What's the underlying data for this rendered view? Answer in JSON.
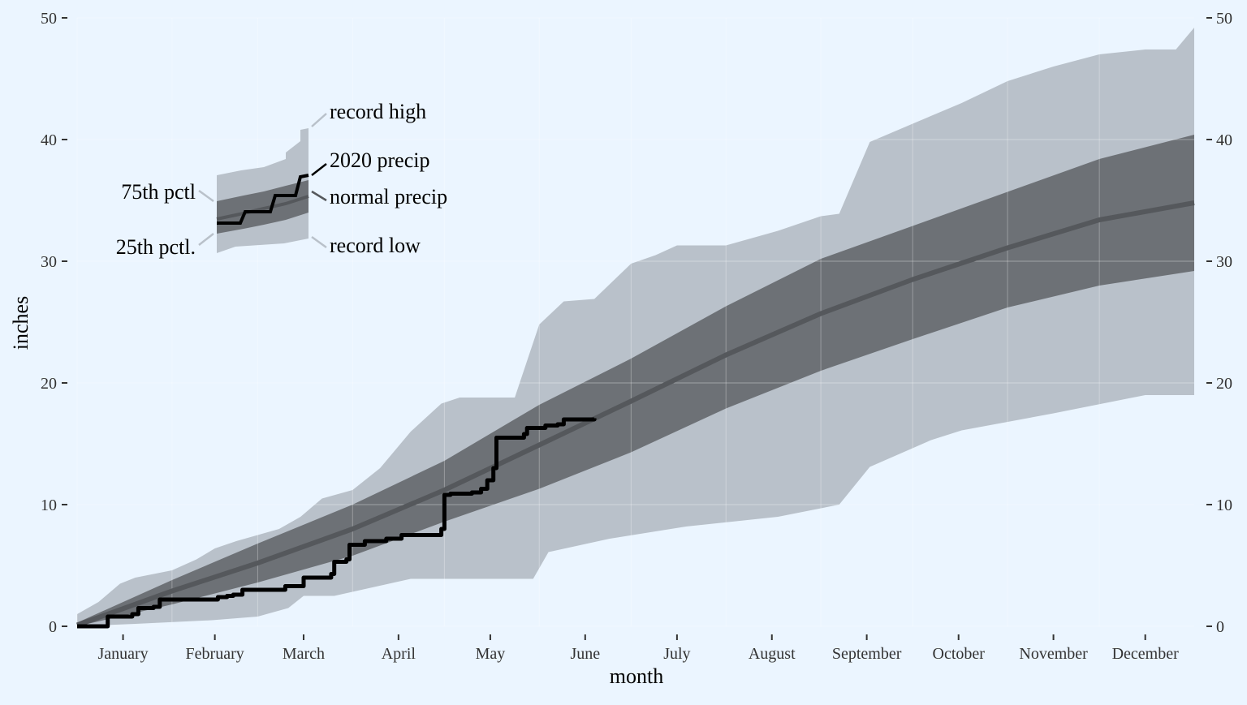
{
  "chart_data": {
    "type": "area",
    "xlabel": "month",
    "ylabel": "inches",
    "ylim": [
      0,
      50
    ],
    "y_ticks": [
      0,
      10,
      20,
      30,
      40,
      50
    ],
    "x_tick_labels": [
      "January",
      "February",
      "March",
      "April",
      "May",
      "June",
      "July",
      "August",
      "September",
      "October",
      "November",
      "December"
    ],
    "x_unit": "day of year",
    "xlim": [
      1,
      366
    ],
    "grid": true,
    "legend_placement": "top-left inset",
    "colors": {
      "record_band": "#b9c1ca",
      "pctl_band": "#6d7176",
      "normal_line": "#55585c",
      "precip_line": "#000000",
      "background": "#ebf5ff"
    },
    "series": [
      {
        "name": "record high",
        "x": [
          1,
          8,
          15,
          20,
          32,
          40,
          46,
          53,
          60,
          67,
          74,
          81,
          91,
          100,
          110,
          120,
          126,
          135,
          144,
          152,
          160,
          170,
          182,
          190,
          197,
          213,
          230,
          244,
          250,
          260,
          274,
          290,
          305,
          320,
          335,
          350,
          360,
          366
        ],
        "y": [
          1.0,
          2.0,
          3.5,
          4.0,
          4.6,
          5.5,
          6.4,
          7.0,
          7.5,
          8.0,
          9.0,
          10.5,
          11.2,
          13.0,
          16.0,
          18.3,
          18.8,
          18.8,
          18.8,
          24.8,
          26.7,
          26.9,
          29.8,
          30.5,
          31.3,
          31.3,
          32.5,
          33.7,
          33.9,
          39.8,
          41.3,
          43.0,
          44.8,
          46.0,
          47.0,
          47.4,
          47.4,
          49.2
        ]
      },
      {
        "name": "75th pctl",
        "x": [
          1,
          32,
          60,
          91,
          121,
          152,
          182,
          213,
          244,
          274,
          305,
          335,
          366
        ],
        "y": [
          0.3,
          3.8,
          6.8,
          10.0,
          13.6,
          18.2,
          22.0,
          26.3,
          30.2,
          32.9,
          35.7,
          38.4,
          40.4
        ]
      },
      {
        "name": "normal precip",
        "x": [
          1,
          32,
          60,
          91,
          121,
          152,
          182,
          213,
          244,
          274,
          305,
          335,
          366
        ],
        "y": [
          0.1,
          2.9,
          5.2,
          8.0,
          11.2,
          14.9,
          18.5,
          22.3,
          25.7,
          28.5,
          31.1,
          33.4,
          34.8
        ]
      },
      {
        "name": "25th pctl",
        "x": [
          1,
          32,
          60,
          91,
          121,
          152,
          182,
          213,
          244,
          274,
          305,
          335,
          366
        ],
        "y": [
          0.0,
          1.8,
          3.6,
          5.8,
          8.6,
          11.3,
          14.3,
          17.9,
          21.0,
          23.6,
          26.2,
          28.0,
          29.2
        ]
      },
      {
        "name": "record low",
        "x": [
          1,
          20,
          45,
          60,
          70,
          75,
          85,
          110,
          150,
          155,
          175,
          200,
          230,
          250,
          260,
          280,
          290,
          320,
          350,
          366
        ],
        "y": [
          0.0,
          0.2,
          0.5,
          0.8,
          1.5,
          2.5,
          2.5,
          3.9,
          3.9,
          6.1,
          7.2,
          8.2,
          9.0,
          10.0,
          13.1,
          15.3,
          16.1,
          17.5,
          19.0,
          19.0
        ]
      },
      {
        "name": "2020 precip",
        "x": [
          1,
          10,
          11,
          19,
          21,
          26,
          28,
          38,
          40,
          47,
          50,
          52,
          55,
          67,
          69,
          75,
          80,
          84,
          85,
          89,
          90,
          95,
          97,
          102,
          107,
          109,
          115,
          120,
          121,
          123,
          126,
          130,
          133,
          135,
          137,
          138,
          147,
          148,
          152,
          154,
          158,
          160,
          170
        ],
        "y": [
          0.0,
          0.0,
          0.8,
          1.0,
          1.5,
          1.6,
          2.2,
          2.2,
          2.2,
          2.4,
          2.5,
          2.6,
          3.0,
          3.0,
          3.3,
          4.0,
          4.0,
          4.3,
          5.3,
          5.5,
          6.7,
          7.0,
          7.0,
          7.2,
          7.5,
          7.5,
          7.5,
          8.0,
          10.8,
          10.9,
          10.9,
          11.0,
          11.3,
          12.0,
          13.0,
          15.5,
          15.8,
          16.3,
          16.3,
          16.5,
          16.6,
          17.0,
          17.1
        ]
      }
    ],
    "legend": {
      "labels": {
        "record_high": "record high",
        "precip_2020": "2020 precip",
        "normal_precip": "normal precip",
        "record_low": "record low",
        "pctl_75": "75th pctl",
        "pctl_25": "25th pctl."
      }
    }
  }
}
